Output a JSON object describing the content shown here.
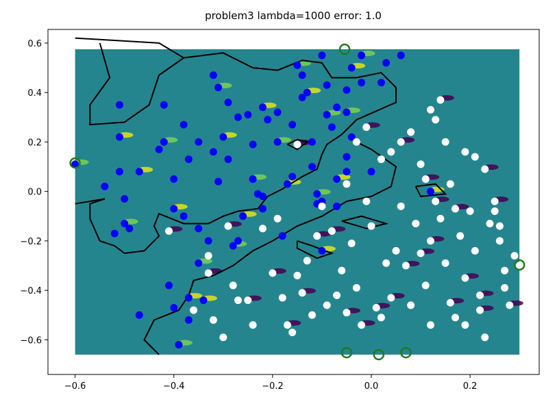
{
  "chart_data": {
    "type": "scatter",
    "title": "problem3 lambda=1000 error: 1.0",
    "xlabel": "",
    "ylabel": "",
    "xlim": [
      -0.655,
      0.34
    ],
    "ylim": [
      -0.74,
      0.655
    ],
    "xticks": [
      -0.6,
      -0.4,
      -0.2,
      0.0,
      0.2
    ],
    "xtick_labels": [
      "−0.6",
      "−0.4",
      "−0.2",
      "0.0",
      "0.2"
    ],
    "yticks": [
      0.6,
      0.4,
      0.2,
      0.0,
      -0.2,
      -0.4,
      -0.6
    ],
    "ytick_labels": [
      "0.6",
      "0.4",
      "0.2",
      "0.0",
      "−0.2",
      "−0.4",
      "−0.6"
    ],
    "grid": false,
    "background_region": {
      "x": [
        -0.6,
        0.3
      ],
      "y": [
        -0.66,
        0.575
      ],
      "color": "#25858e"
    },
    "colors": {
      "blue": "#0000ff",
      "white": "#ffffff",
      "boundary": "#000000",
      "support": "#1f7a1f",
      "spike_high": "#e0e41a",
      "spike_mid": "#7ad151",
      "spike_low": "#440154"
    },
    "series": [
      {
        "color": "blue",
        "points": [
          [
            -0.6,
            0.11
          ],
          [
            -0.54,
            0.02
          ],
          [
            -0.51,
            0.35
          ],
          [
            -0.51,
            0.22
          ],
          [
            -0.51,
            0.08
          ],
          [
            -0.5,
            -0.03
          ],
          [
            -0.5,
            -0.13
          ],
          [
            -0.52,
            -0.17
          ],
          [
            -0.49,
            -0.15
          ],
          [
            -0.47,
            0.08
          ],
          [
            -0.47,
            -0.5
          ],
          [
            -0.43,
            0.17
          ],
          [
            -0.42,
            0.2
          ],
          [
            -0.42,
            0.35
          ],
          [
            -0.4,
            0.05
          ],
          [
            -0.4,
            -0.07
          ],
          [
            -0.41,
            -0.38
          ],
          [
            -0.4,
            -0.47
          ],
          [
            -0.39,
            -0.62
          ],
          [
            -0.38,
            0.27
          ],
          [
            -0.38,
            -0.1
          ],
          [
            -0.37,
            -0.43
          ],
          [
            -0.37,
            -0.52
          ],
          [
            -0.37,
            0.13
          ],
          [
            -0.35,
            -0.29
          ],
          [
            -0.35,
            0.2
          ],
          [
            -0.35,
            -0.15
          ],
          [
            -0.34,
            -0.44
          ],
          [
            -0.33,
            -0.2
          ],
          [
            -0.32,
            0.47
          ],
          [
            -0.31,
            0.42
          ],
          [
            -0.31,
            0.04
          ],
          [
            -0.32,
            0.16
          ],
          [
            -0.3,
            0.22
          ],
          [
            -0.29,
            0.36
          ],
          [
            -0.29,
            0.13
          ],
          [
            -0.28,
            -0.22
          ],
          [
            -0.27,
            -0.2
          ],
          [
            -0.27,
            0.3
          ],
          [
            -0.26,
            -0.1
          ],
          [
            -0.25,
            0.31
          ],
          [
            -0.24,
            0.19
          ],
          [
            -0.24,
            0.05
          ],
          [
            -0.23,
            -0.01
          ],
          [
            -0.22,
            -0.02
          ],
          [
            -0.22,
            0.34
          ],
          [
            -0.21,
            0.29
          ],
          [
            -0.22,
            -0.07
          ],
          [
            -0.19,
            0.2
          ],
          [
            -0.19,
            0.32
          ],
          [
            -0.18,
            -0.18
          ],
          [
            -0.17,
            0.03
          ],
          [
            -0.16,
            0.06
          ],
          [
            -0.16,
            0.27
          ],
          [
            -0.15,
            0.51
          ],
          [
            -0.14,
            0.47
          ],
          [
            -0.14,
            0.38
          ],
          [
            -0.13,
            0.4
          ],
          [
            -0.12,
            0.2
          ],
          [
            -0.12,
            0.1
          ],
          [
            -0.11,
            -0.01
          ],
          [
            -0.11,
            -0.05
          ],
          [
            -0.1,
            -0.04
          ],
          [
            -0.1,
            -0.24
          ],
          [
            -0.1,
            0.55
          ],
          [
            -0.09,
            0.43
          ],
          [
            -0.09,
            0.31
          ],
          [
            -0.08,
            0.26
          ],
          [
            -0.07,
            0.34
          ],
          [
            -0.07,
            0.05
          ],
          [
            -0.07,
            -0.06
          ],
          [
            -0.05,
            0.41
          ],
          [
            -0.05,
            0.32
          ],
          [
            -0.05,
            0.08
          ],
          [
            -0.05,
            0.14
          ],
          [
            -0.04,
            0.5
          ],
          [
            -0.04,
            0.22
          ],
          [
            -0.02,
            0.44
          ],
          [
            -0.02,
            0.55
          ],
          [
            0.02,
            0.44
          ],
          [
            0.03,
            0.52
          ],
          [
            0.12,
            0.0
          ],
          [
            0.06,
            0.55
          ],
          [
            0.0,
            0.08
          ]
        ]
      },
      {
        "color": "white",
        "points": [
          [
            -0.41,
            -0.16
          ],
          [
            -0.36,
            -0.48
          ],
          [
            -0.33,
            -0.26
          ],
          [
            -0.33,
            -0.33
          ],
          [
            -0.32,
            -0.52
          ],
          [
            -0.3,
            -0.59
          ],
          [
            -0.29,
            -0.14
          ],
          [
            -0.28,
            -0.38
          ],
          [
            -0.27,
            -0.44
          ],
          [
            -0.25,
            -0.44
          ],
          [
            -0.24,
            -0.54
          ],
          [
            -0.22,
            -0.15
          ],
          [
            -0.2,
            -0.33
          ],
          [
            -0.19,
            -0.11
          ],
          [
            -0.18,
            -0.43
          ],
          [
            -0.17,
            -0.54
          ],
          [
            -0.16,
            -0.57
          ],
          [
            -0.15,
            -0.34
          ],
          [
            -0.14,
            -0.41
          ],
          [
            -0.13,
            -0.28
          ],
          [
            -0.12,
            -0.5
          ],
          [
            -0.11,
            -0.18
          ],
          [
            -0.1,
            -0.06
          ],
          [
            -0.09,
            -0.46
          ],
          [
            -0.08,
            -0.16
          ],
          [
            -0.07,
            -0.42
          ],
          [
            -0.06,
            -0.32
          ],
          [
            -0.05,
            -0.49
          ],
          [
            -0.04,
            -0.21
          ],
          [
            -0.03,
            -0.39
          ],
          [
            -0.02,
            -0.54
          ],
          [
            -0.01,
            -0.04
          ],
          [
            0.0,
            -0.14
          ],
          [
            0.01,
            -0.47
          ],
          [
            0.02,
            -0.51
          ],
          [
            0.03,
            -0.29
          ],
          [
            0.04,
            -0.43
          ],
          [
            0.05,
            -0.24
          ],
          [
            0.06,
            -0.06
          ],
          [
            0.07,
            -0.3
          ],
          [
            0.08,
            -0.46
          ],
          [
            0.09,
            -0.13
          ],
          [
            0.1,
            -0.25
          ],
          [
            0.11,
            -0.38
          ],
          [
            0.12,
            -0.54
          ],
          [
            0.13,
            -0.04
          ],
          [
            0.14,
            -0.11
          ],
          [
            0.15,
            -0.29
          ],
          [
            0.16,
            -0.45
          ],
          [
            0.17,
            -0.51
          ],
          [
            0.18,
            -0.18
          ],
          [
            0.19,
            -0.35
          ],
          [
            0.2,
            -0.08
          ],
          [
            0.21,
            -0.24
          ],
          [
            0.22,
            -0.42
          ],
          [
            0.23,
            -0.59
          ],
          [
            0.24,
            -0.13
          ],
          [
            0.25,
            -0.04
          ],
          [
            0.26,
            -0.2
          ],
          [
            0.27,
            -0.32
          ],
          [
            0.28,
            -0.46
          ],
          [
            0.29,
            -0.26
          ],
          [
            0.3,
            -0.3
          ],
          [
            -0.15,
            0.19
          ],
          [
            -0.05,
            0.03
          ],
          [
            -0.03,
            0.2
          ],
          [
            -0.01,
            0.26
          ],
          [
            0.02,
            0.13
          ],
          [
            0.04,
            0.16
          ],
          [
            0.06,
            0.2
          ],
          [
            0.08,
            0.24
          ],
          [
            0.1,
            0.11
          ],
          [
            0.11,
            0.05
          ],
          [
            0.12,
            0.33
          ],
          [
            0.13,
            0.29
          ],
          [
            0.14,
            0.37
          ],
          [
            0.15,
            0.2
          ],
          [
            0.16,
            0.03
          ],
          [
            0.17,
            -0.07
          ],
          [
            0.19,
            0.16
          ],
          [
            0.21,
            0.14
          ],
          [
            0.23,
            0.09
          ],
          [
            0.25,
            -0.08
          ],
          [
            0.26,
            -0.14
          ],
          [
            0.12,
            -0.2
          ],
          [
            0.27,
            -0.39
          ],
          [
            0.19,
            -0.54
          ],
          [
            0.22,
            -0.48
          ]
        ]
      },
      {
        "color": "green-hollow",
        "points": [
          [
            -0.6,
            0.115
          ],
          [
            -0.054,
            0.575
          ],
          [
            0.3,
            -0.297
          ],
          [
            -0.05,
            -0.652
          ],
          [
            0.015,
            -0.66
          ],
          [
            0.07,
            -0.652
          ]
        ]
      }
    ]
  }
}
